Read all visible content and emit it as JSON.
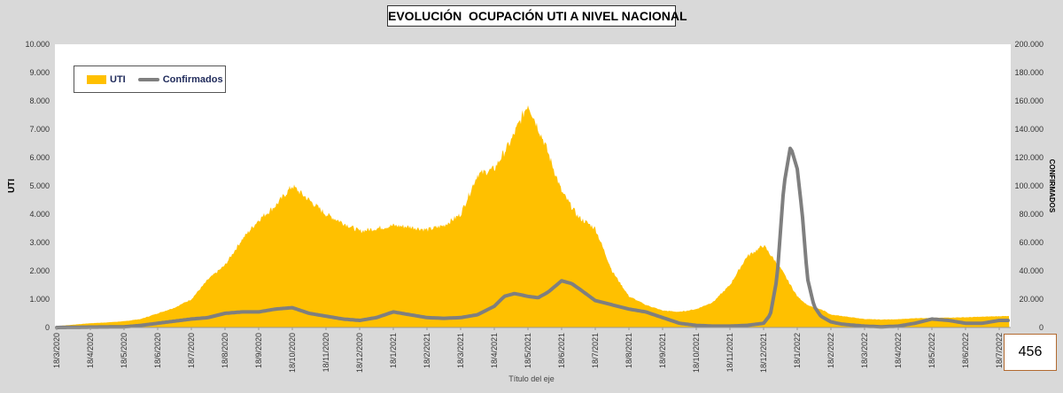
{
  "chart_data": {
    "type": "area",
    "title": "EVOLUCIÓN  OCUPACIÓN UTI A NIVEL NACIONAL",
    "xlabel": "Título del eje",
    "ylabel": "UTI",
    "y2label": "CONFIRMADOS",
    "ylim": [
      0,
      10000
    ],
    "y2lim": [
      0,
      200000
    ],
    "yticks": [
      "0",
      "1.000",
      "2.000",
      "3.000",
      "4.000",
      "5.000",
      "6.000",
      "7.000",
      "8.000",
      "9.000",
      "10.000"
    ],
    "y2ticks": [
      "0",
      "20.000",
      "40.000",
      "60.000",
      "80.000",
      "100.000",
      "120.000",
      "140.000",
      "160.000",
      "180.000",
      "200.000"
    ],
    "categories": [
      "18/3/2020",
      "18/4/2020",
      "18/5/2020",
      "18/6/2020",
      "18/7/2020",
      "18/8/2020",
      "18/9/2020",
      "18/10/2020",
      "18/11/2020",
      "18/12/2020",
      "18/1/2021",
      "18/2/2021",
      "18/3/2021",
      "18/4/2021",
      "18/5/2021",
      "18/6/2021",
      "18/7/2021",
      "18/8/2021",
      "18/9/2021",
      "18/10/2021",
      "18/11/2021",
      "18/12/2021",
      "18/1/2022",
      "18/2/2022",
      "18/3/2022",
      "18/4/2022",
      "18/5/2022",
      "18/6/2022",
      "18/7/2022"
    ],
    "legend": [
      "UTI",
      "Confirmados"
    ],
    "legend_position": "top-left",
    "series": [
      {
        "name": "UTI",
        "axis": "left",
        "color": "#ffc000",
        "x": [
          0,
          0.5,
          1,
          1.5,
          2,
          2.5,
          3,
          3.5,
          4,
          4.5,
          5,
          5.5,
          6,
          6.5,
          7,
          7.5,
          8,
          8.5,
          9,
          9.5,
          10,
          10.5,
          11,
          11.5,
          12,
          12.5,
          13,
          13.5,
          14,
          14.5,
          15,
          15.5,
          16,
          16.5,
          17,
          17.5,
          18,
          18.5,
          19,
          19.5,
          20,
          20.5,
          21,
          21.5,
          22,
          22.3,
          22.5,
          22.8,
          23,
          23.5,
          24,
          24.5,
          25,
          25.5,
          26,
          26.5,
          27,
          27.5,
          28,
          28.3
        ],
        "values": [
          50,
          100,
          150,
          180,
          220,
          300,
          500,
          700,
          1000,
          1700,
          2200,
          3100,
          3800,
          4300,
          5000,
          4500,
          4000,
          3700,
          3400,
          3500,
          3600,
          3550,
          3450,
          3600,
          4000,
          5400,
          5600,
          6600,
          7900,
          6500,
          4800,
          3900,
          3500,
          2000,
          1100,
          800,
          600,
          550,
          650,
          900,
          1500,
          2500,
          2900,
          2100,
          1100,
          800,
          700,
          600,
          450,
          380,
          300,
          280,
          290,
          330,
          340,
          350,
          360,
          380,
          400,
          400
        ]
      },
      {
        "name": "Confirmados",
        "axis": "right",
        "color": "#7f7f7f",
        "x": [
          0,
          1,
          2,
          2.5,
          3,
          3.5,
          4,
          4.5,
          5,
          5.5,
          6,
          6.5,
          7,
          7.5,
          8,
          8.5,
          9,
          9.5,
          10,
          10.5,
          11,
          11.5,
          12,
          12.5,
          13,
          13.3,
          13.6,
          14,
          14.3,
          14.6,
          15,
          15.3,
          15.6,
          16,
          16.5,
          17,
          17.5,
          18,
          18.5,
          19,
          19.5,
          20,
          20.5,
          21,
          21.2,
          21.4,
          21.6,
          21.8,
          22,
          22.15,
          22.3,
          22.5,
          22.7,
          23,
          23.3,
          23.5,
          24,
          24.5,
          25,
          25.5,
          26,
          26.5,
          27,
          27.5,
          28,
          28.3
        ],
        "values": [
          0,
          300,
          500,
          1500,
          3000,
          4500,
          6000,
          7000,
          10000,
          11000,
          11000,
          13000,
          14000,
          10000,
          8000,
          6000,
          5000,
          7000,
          11000,
          9000,
          7000,
          6500,
          7000,
          9000,
          15000,
          22000,
          24000,
          22000,
          21000,
          25000,
          33000,
          31000,
          26000,
          19000,
          16000,
          13000,
          11000,
          7000,
          3000,
          1500,
          1000,
          1000,
          1500,
          3000,
          9000,
          35000,
          100000,
          128000,
          112000,
          80000,
          35000,
          15000,
          8000,
          4000,
          2500,
          2000,
          1000,
          500,
          1000,
          3000,
          6000,
          5000,
          3000,
          3000,
          5000,
          5000
        ]
      }
    ]
  },
  "page_number": "456"
}
